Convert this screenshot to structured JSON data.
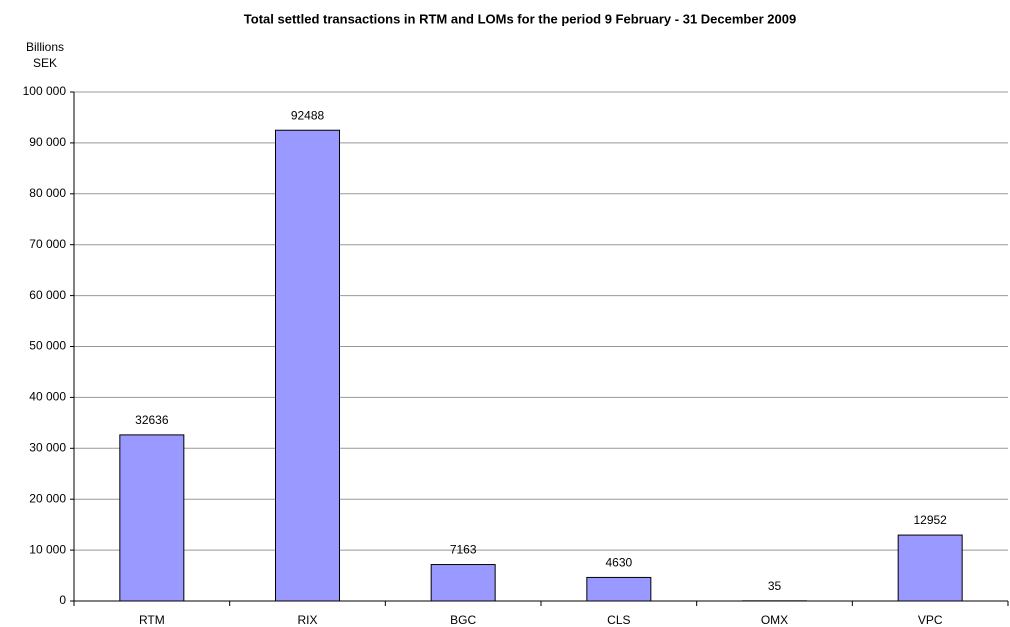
{
  "chart_data": {
    "type": "bar",
    "title": "Total settled transactions in RTM and LOMs for the period 9 February - 31 December 2009",
    "y_label": [
      "Billions",
      "SEK"
    ],
    "categories": [
      "RTM",
      "RIX",
      "BGC",
      "CLS",
      "OMX",
      "VPC"
    ],
    "values": [
      32636,
      92488,
      7163,
      4630,
      35,
      12952
    ],
    "color": "#9999ff",
    "ylim": [
      0,
      100000
    ],
    "yticks": [
      0,
      {
        "value": 10000,
        "label": "10 000"
      },
      {
        "value": 20000,
        "label": "20 000"
      },
      {
        "value": 30000,
        "label": "30 000"
      },
      {
        "value": 40000,
        "label": "40 000"
      },
      {
        "value": 50000,
        "label": "50 000"
      },
      {
        "value": 60000,
        "label": "60 000"
      },
      {
        "value": 70000,
        "label": "70 000"
      },
      {
        "value": 80000,
        "label": "80 000"
      },
      {
        "value": 90000,
        "label": "90 000"
      },
      {
        "value": 100000,
        "label": "100 000"
      }
    ],
    "grid": true
  }
}
